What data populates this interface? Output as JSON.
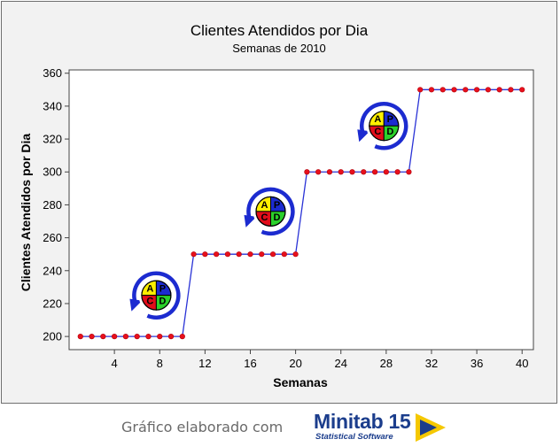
{
  "chart_data": {
    "type": "line",
    "title": "Clientes Atendidos por Dia",
    "subtitle": "Semanas de 2010",
    "xlabel": "Semanas",
    "ylabel": "Clientes Atendidos por Dia",
    "xlim": [
      0,
      41
    ],
    "ylim": [
      192,
      362
    ],
    "x_ticks": [
      4,
      8,
      12,
      16,
      20,
      24,
      28,
      32,
      36,
      40
    ],
    "y_ticks": [
      200,
      220,
      240,
      260,
      280,
      300,
      320,
      340,
      360
    ],
    "grid": false,
    "series": [
      {
        "x": [
          1,
          2,
          3,
          4,
          5,
          6,
          7,
          8,
          9,
          10,
          11,
          12,
          13,
          14,
          15,
          16,
          17,
          18,
          19,
          20,
          21,
          22,
          23,
          24,
          25,
          26,
          27,
          28,
          29,
          30,
          31,
          32,
          33,
          34,
          35,
          36,
          37,
          38,
          39,
          40
        ],
        "values": [
          200,
          200,
          200,
          200,
          200,
          200,
          200,
          200,
          200,
          200,
          250,
          250,
          250,
          250,
          250,
          250,
          250,
          250,
          250,
          250,
          300,
          300,
          300,
          300,
          300,
          300,
          300,
          300,
          300,
          300,
          350,
          350,
          350,
          350,
          350,
          350,
          350,
          350,
          350,
          350
        ],
        "line_color": "#2a33d6",
        "marker_color": "#e8101c"
      }
    ],
    "annotations": [
      {
        "kind": "pdca-icon",
        "x": 7.7,
        "y": 225,
        "labels": [
          "A",
          "P",
          "C",
          "D"
        ]
      },
      {
        "kind": "pdca-icon",
        "x": 17.8,
        "y": 276,
        "labels": [
          "A",
          "P",
          "C",
          "D"
        ]
      },
      {
        "kind": "pdca-icon",
        "x": 27.8,
        "y": 328,
        "labels": [
          "A",
          "P",
          "C",
          "D"
        ]
      }
    ],
    "colors": {
      "frame_bg": "#f2f2f2",
      "plot_bg": "#ffffff",
      "pdca_quadrants": [
        "#ffef00",
        "#1c2bd0",
        "#e10d1a",
        "#2bd12b"
      ],
      "pdca_ring": "#1c2bd0"
    }
  },
  "footer": {
    "credit": "Gráfico elaborado com",
    "logo_name": "Minitab 15",
    "logo_tagline": "Statistical Software",
    "logo_colors": {
      "text": "#1b3d8c",
      "arrow": "#f5c800",
      "arrow_inner": "#1b3d8c"
    }
  }
}
